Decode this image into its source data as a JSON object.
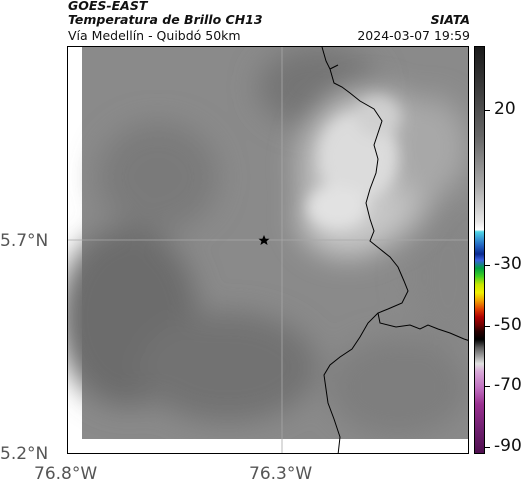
{
  "header": {
    "title": "GOES-EAST",
    "subtitle": "Temperatura de Brillo CH13",
    "location": "Vía Medellín - Quibdó 50km",
    "brand": "SIATA",
    "datetime": "2024-03-07 19:59"
  },
  "axes": {
    "lat_labels": [
      "5.7°N",
      "5.2°N"
    ],
    "lon_labels": [
      "76.8°W",
      "76.3°W"
    ]
  },
  "colorbar": {
    "labels": [
      "20",
      "-30",
      "-50",
      "-70",
      "-90"
    ]
  },
  "map": {
    "marker": "star",
    "colors": {
      "background": "#8a8a8a",
      "warm": "#6e6e6e",
      "cold": "#e0e0e0",
      "border": "#000000",
      "grid": "#a8a8a8"
    }
  }
}
